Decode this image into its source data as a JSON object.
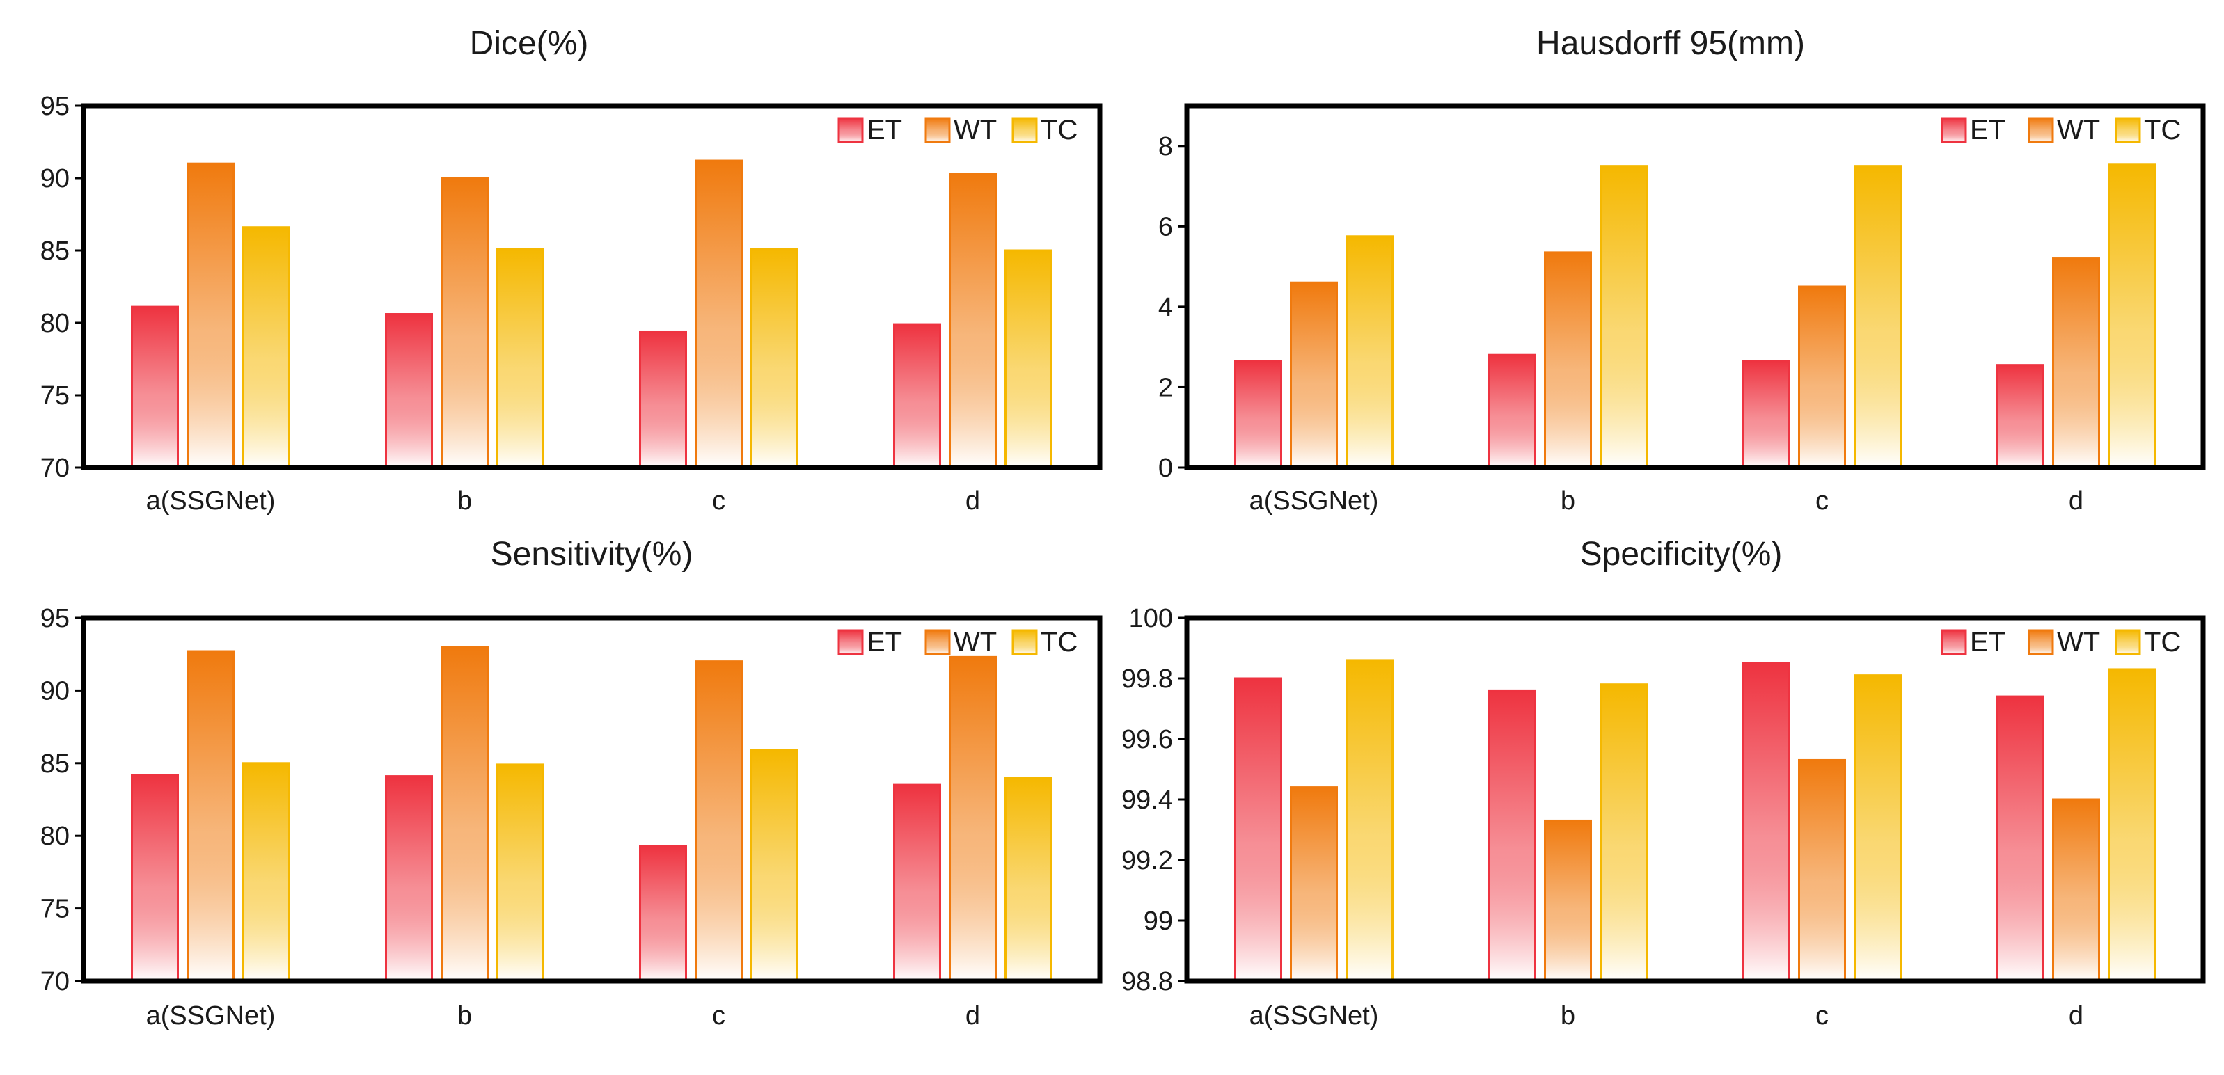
{
  "colors": {
    "ET": "#ee3340",
    "WT": "#f07a0e",
    "TC": "#f5b800"
  },
  "chart_data": [
    {
      "type": "bar",
      "title": "Dice(%)",
      "xlabel": "",
      "ylabel": "",
      "categories": [
        "a(SSGNet)",
        "b",
        "c",
        "d"
      ],
      "ylim": [
        70,
        95
      ],
      "yticks": [
        "70",
        "75",
        "80",
        "85",
        "90",
        "95"
      ],
      "legend_position": "top-right",
      "series": [
        {
          "name": "ET",
          "values": [
            81.1,
            80.6,
            79.4,
            79.9
          ]
        },
        {
          "name": "WT",
          "values": [
            91.0,
            90.0,
            91.2,
            90.3
          ]
        },
        {
          "name": "TC",
          "values": [
            86.6,
            85.1,
            85.1,
            85.0
          ]
        }
      ]
    },
    {
      "type": "bar",
      "title": "Hausdorff 95(mm)",
      "xlabel": "",
      "ylabel": "",
      "categories": [
        "a(SSGNet)",
        "b",
        "c",
        "d"
      ],
      "ylim": [
        0,
        9
      ],
      "yticks": [
        "0",
        "2",
        "4",
        "6",
        "8"
      ],
      "legend_position": "top-right",
      "series": [
        {
          "name": "ET",
          "values": [
            2.65,
            2.8,
            2.65,
            2.55
          ]
        },
        {
          "name": "WT",
          "values": [
            4.6,
            5.35,
            4.5,
            5.2
          ]
        },
        {
          "name": "TC",
          "values": [
            5.75,
            7.5,
            7.5,
            7.55
          ]
        }
      ]
    },
    {
      "type": "bar",
      "title": "Sensitivity(%)",
      "xlabel": "",
      "ylabel": "",
      "categories": [
        "a(SSGNet)",
        "b",
        "c",
        "d"
      ],
      "ylim": [
        70,
        95
      ],
      "yticks": [
        "70",
        "75",
        "80",
        "85",
        "90",
        "95"
      ],
      "legend_position": "top-right",
      "series": [
        {
          "name": "ET",
          "values": [
            84.2,
            84.1,
            79.3,
            83.5
          ]
        },
        {
          "name": "WT",
          "values": [
            92.7,
            93.0,
            92.0,
            92.3
          ]
        },
        {
          "name": "TC",
          "values": [
            85.0,
            84.9,
            85.9,
            84.0
          ]
        }
      ]
    },
    {
      "type": "bar",
      "title": "Specificity(%)",
      "xlabel": "",
      "ylabel": "",
      "categories": [
        "a(SSGNet)",
        "b",
        "c",
        "d"
      ],
      "ylim": [
        98.8,
        100
      ],
      "yticks": [
        "98.8",
        "99",
        "99.2",
        "99.4",
        "99.6",
        "99.8",
        "100"
      ],
      "legend_position": "top-right",
      "series": [
        {
          "name": "ET",
          "values": [
            99.8,
            99.76,
            99.85,
            99.74
          ]
        },
        {
          "name": "WT",
          "values": [
            99.44,
            99.33,
            99.53,
            99.4
          ]
        },
        {
          "name": "TC",
          "values": [
            99.86,
            99.78,
            99.81,
            99.83
          ]
        }
      ]
    }
  ]
}
